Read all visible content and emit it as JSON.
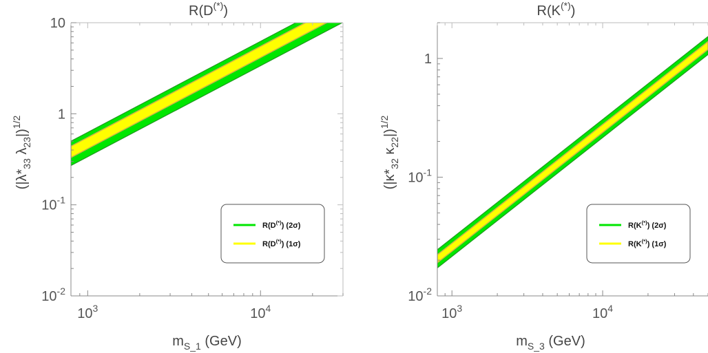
{
  "chart_data": [
    {
      "type": "area",
      "title": "R(D^{(*)})",
      "xlabel": "m_{S_1} (GeV)",
      "ylabel": "(|λ*_33 λ_23|)^{1/2}",
      "x_scale": "log",
      "y_scale": "log",
      "xlim": [
        800,
        30000
      ],
      "ylim": [
        0.01,
        10
      ],
      "x_ticks": [
        {
          "value": 1000,
          "label": "10^3"
        },
        {
          "value": 10000,
          "label": "10^4"
        }
      ],
      "y_ticks": [
        {
          "value": 10,
          "label": "10"
        },
        {
          "value": 1,
          "label": "1"
        },
        {
          "value": 0.1,
          "label": "10^-1"
        },
        {
          "value": 0.01,
          "label": "10^-2"
        }
      ],
      "legend_position": "bottom-right",
      "series": [
        {
          "name": "R(D^{(*)}) (2σ)",
          "color": "#00e600",
          "x": [
            800,
            30000
          ],
          "lower": [
            0.27,
            10.1
          ],
          "upper": [
            0.5,
            18.7
          ]
        },
        {
          "name": "R(D^{(*)}) (1σ)",
          "color": "#ffff00",
          "x": [
            800,
            30000
          ],
          "lower": [
            0.33,
            12.4
          ],
          "upper": [
            0.44,
            16.5
          ]
        }
      ]
    },
    {
      "type": "area",
      "title": "R(K^{(*)})",
      "xlabel": "m_{S_3} (GeV)",
      "ylabel": "(|κ*_32 κ_22|)^{1/2}",
      "x_scale": "log",
      "y_scale": "log",
      "xlim": [
        800,
        50000
      ],
      "ylim": [
        0.01,
        2
      ],
      "x_ticks": [
        {
          "value": 1000,
          "label": "10^3"
        },
        {
          "value": 10000,
          "label": "10^4"
        }
      ],
      "y_ticks": [
        {
          "value": 1,
          "label": "1"
        },
        {
          "value": 0.1,
          "label": "10^-1"
        },
        {
          "value": 0.01,
          "label": "10^-2"
        }
      ],
      "legend_position": "bottom-right",
      "series": [
        {
          "name": "R(K^{(*)}) (2σ)",
          "color": "#00e600",
          "x": [
            800,
            50000
          ],
          "lower": [
            0.0172,
            1.08
          ],
          "upper": [
            0.0245,
            1.53
          ]
        },
        {
          "name": "R(K^{(*)}) (1σ)",
          "color": "#ffff00",
          "x": [
            800,
            50000
          ],
          "lower": [
            0.019,
            1.19
          ],
          "upper": [
            0.0222,
            1.39
          ]
        }
      ]
    }
  ]
}
